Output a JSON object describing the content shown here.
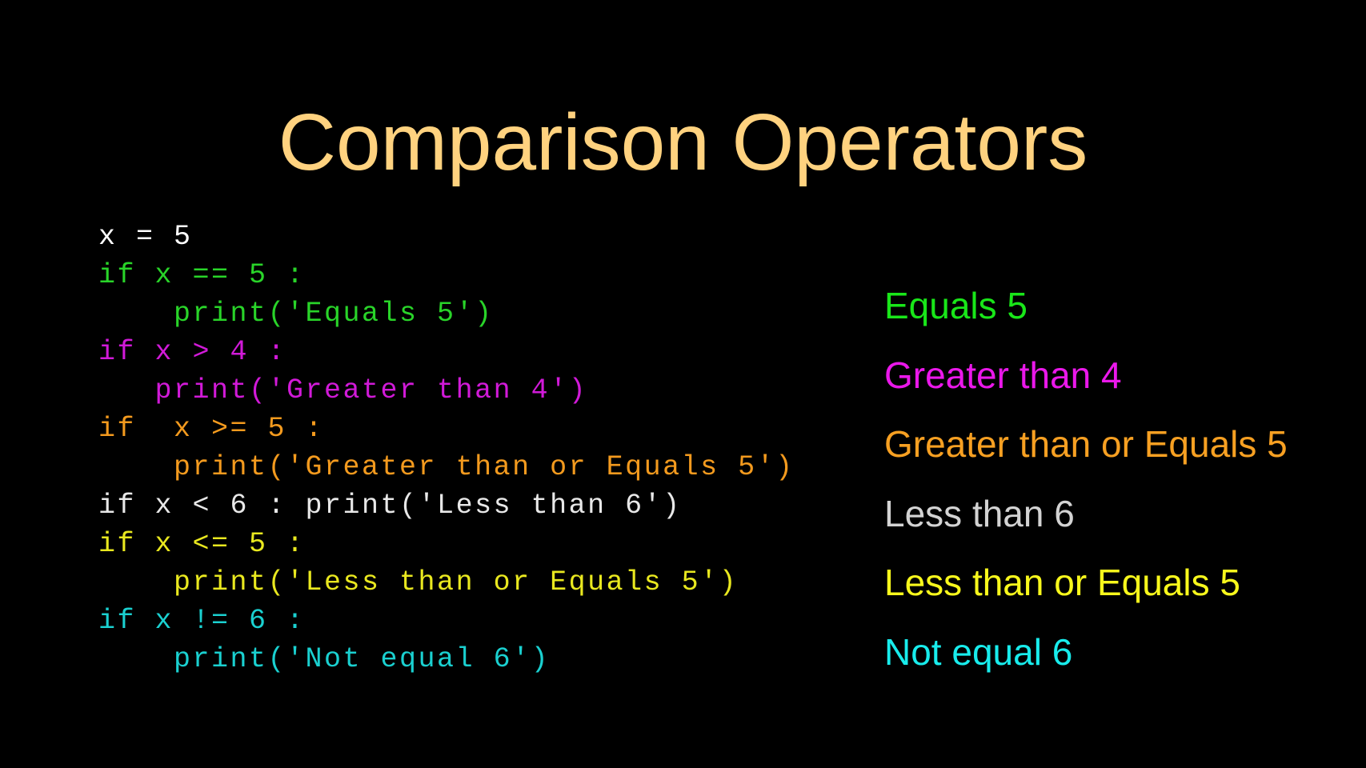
{
  "slide": {
    "title": "Comparison Operators",
    "background": "#000000"
  },
  "code": [
    {
      "text": "x = 5",
      "color": "#ffffff"
    },
    {
      "text": "if x == 5 :",
      "color": "#29d429"
    },
    {
      "text": "    print('Equals 5')",
      "color": "#29d429"
    },
    {
      "text": "if x > 4 :",
      "color": "#d11ad8"
    },
    {
      "text": "   print('Greater than 4')",
      "color": "#d11ad8"
    },
    {
      "text": "if  x >= 5 :",
      "color": "#f39a1e"
    },
    {
      "text": "    print('Greater than or Equals 5')",
      "color": "#f39a1e"
    },
    {
      "text": "if x < 6 : print('Less than 6')",
      "color": "#e8e8e8"
    },
    {
      "text": "if x <= 5 :",
      "color": "#e9e81f"
    },
    {
      "text": "    print('Less than or Equals 5')",
      "color": "#e9e81f"
    },
    {
      "text": "if x != 6 :",
      "color": "#1ad0d0"
    },
    {
      "text": "    print('Not equal 6')",
      "color": "#1ad0d0"
    }
  ],
  "output": [
    {
      "text": "Equals 5",
      "color": "#19e619"
    },
    {
      "text": "Greater than 4",
      "color": "#ea18ea"
    },
    {
      "text": "Greater than or Equals 5",
      "color": "#f7a022"
    },
    {
      "text": "Less than 6",
      "color": "#d3d3d3"
    },
    {
      "text": "Less than or Equals 5",
      "color": "#f8f81c"
    },
    {
      "text": "Not equal 6",
      "color": "#18ecec"
    }
  ]
}
